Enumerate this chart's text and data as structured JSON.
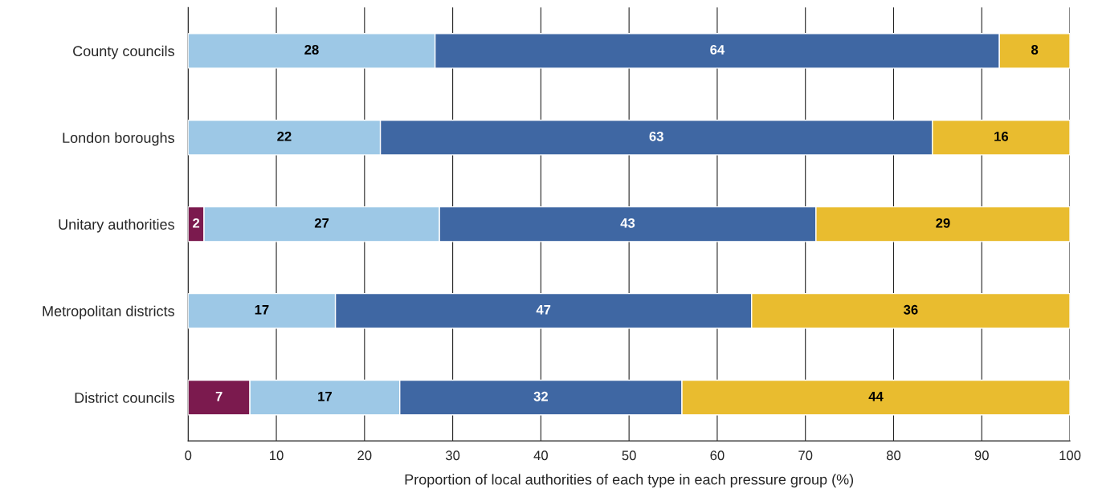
{
  "chart_data": {
    "type": "bar",
    "orientation": "horizontal",
    "stacked": true,
    "categories": [
      "County councils",
      "London boroughs",
      "Unitary authorities",
      "Metropolitan districts",
      "District councils"
    ],
    "series": [
      {
        "color": "#7b1a4e",
        "values": [
          null,
          null,
          1.8,
          null,
          7
        ],
        "value_labels": [
          null,
          null,
          "2",
          null,
          "7"
        ]
      },
      {
        "color": "#9dc8e6",
        "values": [
          28,
          21.8,
          26.7,
          16.7,
          17
        ],
        "value_labels": [
          "28",
          "22",
          "27",
          "17",
          "17"
        ]
      },
      {
        "color": "#3f67a3",
        "values": [
          64,
          62.6,
          42.7,
          47.2,
          32
        ],
        "value_labels": [
          "64",
          "63",
          "43",
          "47",
          "32"
        ]
      },
      {
        "color": "#e9bc2f",
        "values": [
          8,
          15.6,
          28.8,
          36.1,
          44
        ],
        "value_labels": [
          "8",
          "16",
          "29",
          "36",
          "44"
        ]
      }
    ],
    "xlabel": "Proportion of local authorities of each type in each pressure group (%)",
    "xlim": [
      0,
      100
    ],
    "xticks": [
      0,
      10,
      20,
      30,
      40,
      50,
      60,
      70,
      80,
      90,
      100
    ],
    "grid": "x",
    "legend": false
  }
}
